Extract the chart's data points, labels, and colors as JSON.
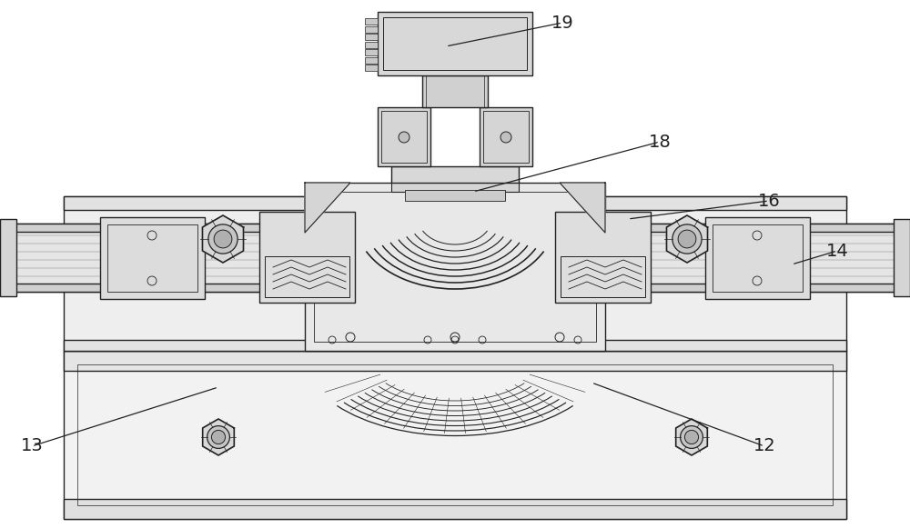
{
  "bg_color": "#ffffff",
  "line_color": "#222222",
  "lw": 1.0,
  "fig_width": 10.0,
  "fig_height": 5.81
}
